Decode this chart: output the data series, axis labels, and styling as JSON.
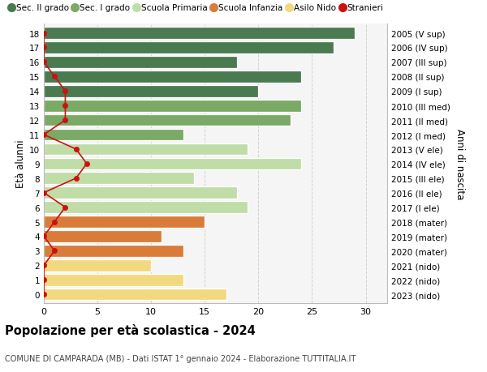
{
  "ages": [
    18,
    17,
    16,
    15,
    14,
    13,
    12,
    11,
    10,
    9,
    8,
    7,
    6,
    5,
    4,
    3,
    2,
    1,
    0
  ],
  "years": [
    "2005 (V sup)",
    "2006 (IV sup)",
    "2007 (III sup)",
    "2008 (II sup)",
    "2009 (I sup)",
    "2010 (III med)",
    "2011 (II med)",
    "2012 (I med)",
    "2013 (V ele)",
    "2014 (IV ele)",
    "2015 (III ele)",
    "2016 (II ele)",
    "2017 (I ele)",
    "2018 (mater)",
    "2019 (mater)",
    "2020 (mater)",
    "2021 (nido)",
    "2022 (nido)",
    "2023 (nido)"
  ],
  "values": [
    29,
    27,
    18,
    24,
    20,
    24,
    23,
    13,
    19,
    24,
    14,
    18,
    19,
    15,
    11,
    13,
    10,
    13,
    17
  ],
  "bar_colors": [
    "#4a7a50",
    "#4a7a50",
    "#4a7a50",
    "#4a7a50",
    "#4a7a50",
    "#7aaa65",
    "#7aaa65",
    "#7aaa65",
    "#c0dda8",
    "#c0dda8",
    "#c0dda8",
    "#c0dda8",
    "#c0dda8",
    "#d97c3a",
    "#d97c3a",
    "#d97c3a",
    "#f2d980",
    "#f2d980",
    "#f2d980"
  ],
  "stranieri": [
    0,
    0,
    0,
    1,
    2,
    2,
    2,
    0,
    3,
    4,
    3,
    0,
    2,
    1,
    0,
    1,
    0,
    0,
    0
  ],
  "legend_labels": [
    "Sec. II grado",
    "Sec. I grado",
    "Scuola Primaria",
    "Scuola Infanzia",
    "Asilo Nido",
    "Stranieri"
  ],
  "legend_colors": [
    "#4a7a50",
    "#7aaa65",
    "#c0dda8",
    "#d97c3a",
    "#f2d980",
    "#cc1111"
  ],
  "ylabel_left": "Età alunni",
  "ylabel_right": "Anni di nascita",
  "title": "Popolazione per età scolastica - 2024",
  "subtitle": "COMUNE DI CAMPARADA (MB) - Dati ISTAT 1° gennaio 2024 - Elaborazione TUTTITALIA.IT",
  "xlim_max": 32,
  "xticks": [
    0,
    5,
    10,
    15,
    20,
    25,
    30
  ],
  "bar_height": 0.82,
  "stranieri_color": "#cc1111",
  "grid_color": "#d0d0d0",
  "bg_axes": "#f5f5f5"
}
